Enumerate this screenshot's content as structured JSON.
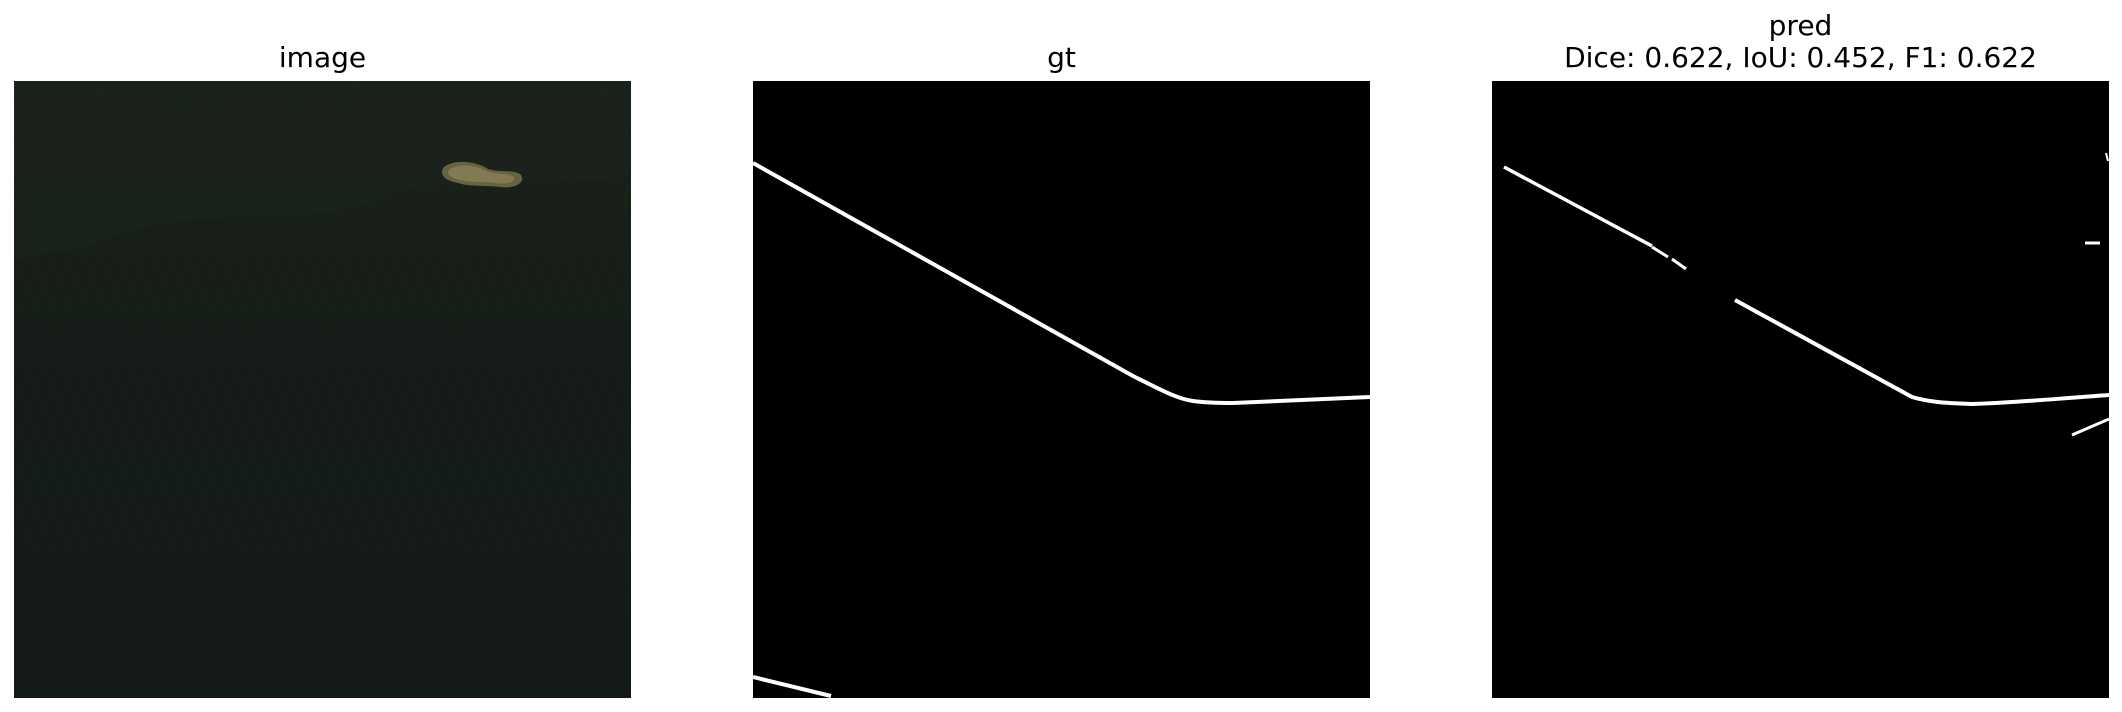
{
  "figure": {
    "panels": [
      {
        "title": "image"
      },
      {
        "title": "gt"
      },
      {
        "title": "pred",
        "subtitle": "Dice: 0.622, IoU: 0.452, F1: 0.622"
      }
    ]
  },
  "colors": {
    "background": "#ffffff",
    "mask_background": "#000000",
    "mask_foreground": "#ffffff",
    "satellite_base": "#151c18"
  }
}
